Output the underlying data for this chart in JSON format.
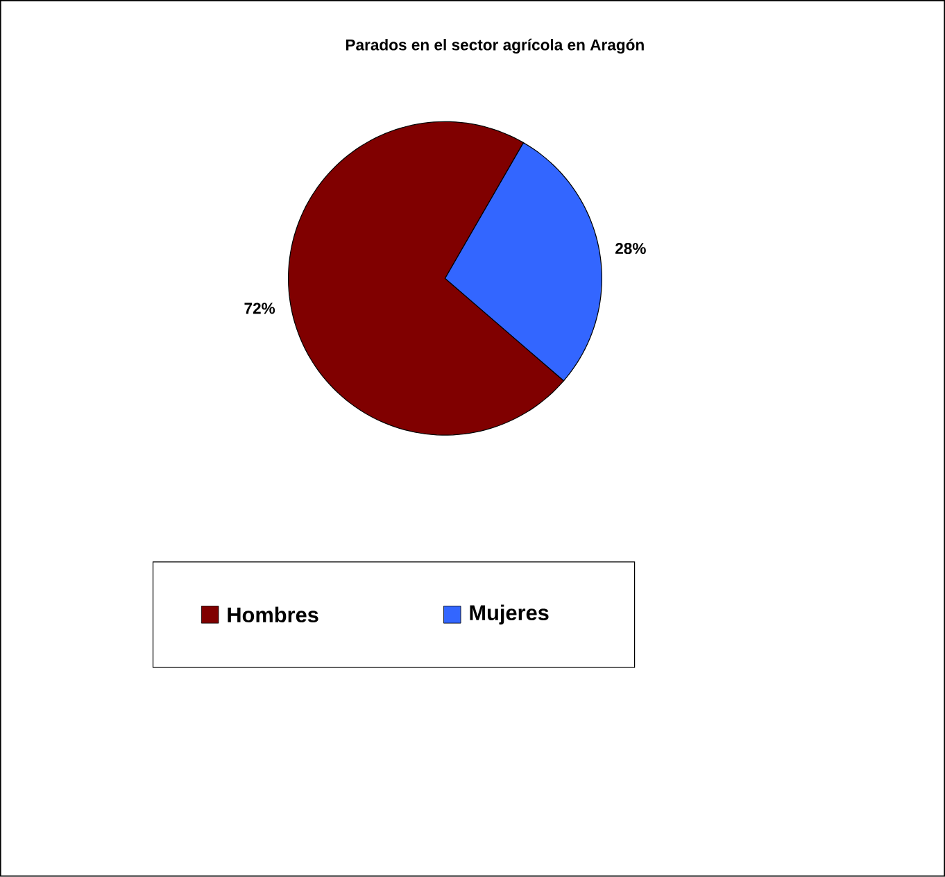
{
  "chart_data": {
    "type": "pie",
    "title": "Parados en el sector agrícola en Aragón",
    "categories": [
      "Hombres",
      "Mujeres"
    ],
    "values": [
      72,
      28
    ],
    "colors": [
      "#800000",
      "#3366ff"
    ],
    "value_labels": [
      "72%",
      "28%"
    ],
    "legend": "bottom"
  }
}
